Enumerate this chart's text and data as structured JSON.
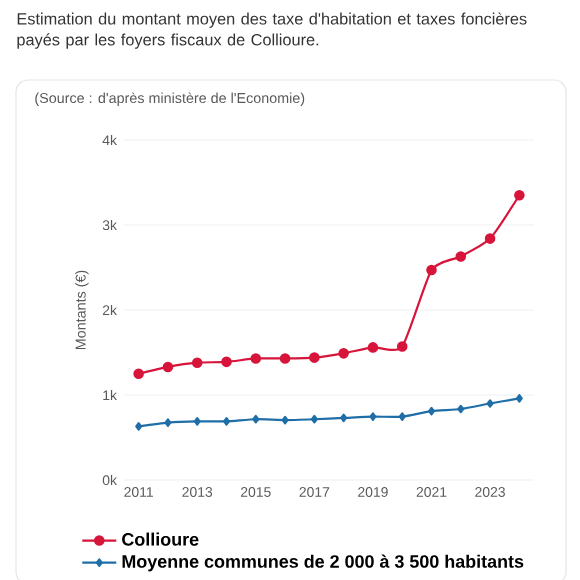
{
  "chart_data": {
    "type": "line",
    "title": "Estimation du montant moyen des taxe d'habitation et taxes foncières payés par les foyers fiscaux de Collioure.",
    "annotations": [
      "(Source : d'après ministère de l'Economie)"
    ],
    "ylabel": "Montants (€)",
    "x": [
      2011,
      2012,
      2013,
      2014,
      2015,
      2016,
      2017,
      2018,
      2019,
      2020,
      2021,
      2022,
      2023,
      2024
    ],
    "series": [
      {
        "name": "Collioure",
        "color": "#d7153a",
        "marker": "circle",
        "values": [
          1250,
          1330,
          1380,
          1390,
          1430,
          1430,
          1440,
          1490,
          1560,
          1570,
          2470,
          2630,
          2840,
          3350
        ]
      },
      {
        "name": "Moyenne communes de 2 000 à 3 500 habitants",
        "color": "#1f6ea8",
        "marker": "diamond",
        "values": [
          630,
          675,
          690,
          690,
          715,
          705,
          715,
          730,
          745,
          745,
          810,
          835,
          900,
          960
        ]
      }
    ],
    "xlim": [
      2010.5,
      2024.5
    ],
    "xticks": [
      2011,
      2013,
      2015,
      2017,
      2019,
      2021,
      2023
    ],
    "ylim": [
      0,
      4000
    ],
    "yticks": [
      {
        "value": 0,
        "label": "0k"
      },
      {
        "value": 1000,
        "label": "1k"
      },
      {
        "value": 2000,
        "label": "2k"
      },
      {
        "value": 3000,
        "label": "3k"
      },
      {
        "value": 4000,
        "label": "4k"
      }
    ],
    "grid": "y",
    "legend": "bottom"
  }
}
